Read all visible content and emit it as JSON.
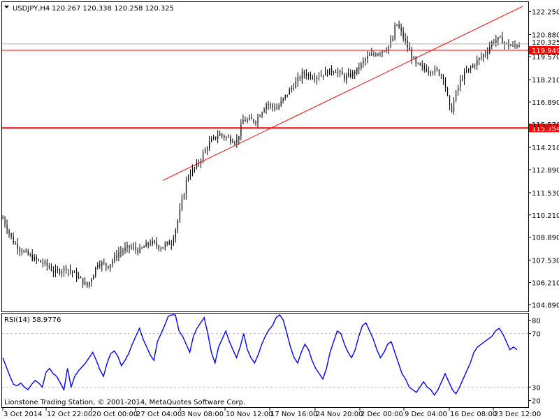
{
  "header": {
    "symbol": "USDJPY,H4",
    "ohlc": "120.267 120.338 120.258 120.325"
  },
  "rsi_label": "RSI(14) 58.9776",
  "copyright": "Lionstone Trading Station, © 2001-2014, MetaQuotes Software Corp.",
  "colors": {
    "candles": "#000000",
    "hline": "#ff0000",
    "trendline": "#ff0000",
    "rsi_line": "#0000ff",
    "rsi_levels": "#c0c0c0",
    "tag_bg": "#ff0000",
    "tag_text": "#ffffff"
  },
  "chart_data": [
    {
      "type": "candlestick",
      "symbol": "USDJPY",
      "timeframe": "H4",
      "y_ticks": [
        "122.250",
        "120.880",
        "119.570",
        "118.210",
        "116.890",
        "115.570",
        "114.210",
        "112.890",
        "111.530",
        "110.210",
        "108.890",
        "107.530",
        "106.210",
        "104.890"
      ],
      "ylim": [
        104.5,
        122.8
      ],
      "x_ticks": [
        "3 Oct 2014",
        "12 Oct 22:00",
        "20 Oct 00:00",
        "27 Oct 04:00",
        "3 Nov 08:00",
        "10 Nov 12:00",
        "17 Nov 16:00",
        "24 Nov 20:00",
        "2 Dec 00:00",
        "9 Dec 04:00",
        "16 Dec 08:00",
        "23 Dec 12:00"
      ],
      "current_price": "120.325",
      "horizontal_lines": [
        "119.949",
        "115.354"
      ],
      "trendline": {
        "from": [
          "Oct 29",
          112.3
        ],
        "to": [
          "Dec 26",
          122.5
        ]
      },
      "close_path": [
        [
          0,
          110.0
        ],
        [
          10,
          108.6
        ],
        [
          20,
          108.0
        ],
        [
          30,
          107.6
        ],
        [
          40,
          107.3
        ],
        [
          50,
          106.8
        ],
        [
          60,
          107.1
        ],
        [
          70,
          106.6
        ],
        [
          80,
          106.0
        ],
        [
          85,
          106.6
        ],
        [
          90,
          107.4
        ],
        [
          100,
          107.2
        ],
        [
          110,
          108.0
        ],
        [
          120,
          108.3
        ],
        [
          130,
          108.1
        ],
        [
          140,
          108.6
        ],
        [
          150,
          108.3
        ],
        [
          160,
          108.6
        ],
        [
          165,
          109.6
        ],
        [
          170,
          111.0
        ],
        [
          175,
          112.5
        ],
        [
          185,
          113.2
        ],
        [
          195,
          114.4
        ],
        [
          205,
          115.0
        ],
        [
          215,
          114.7
        ],
        [
          222,
          114.6
        ],
        [
          228,
          115.8
        ],
        [
          240,
          115.8
        ],
        [
          250,
          116.8
        ],
        [
          260,
          116.5
        ],
        [
          270,
          117.4
        ],
        [
          285,
          118.6
        ],
        [
          295,
          118.4
        ],
        [
          305,
          118.6
        ],
        [
          315,
          118.8
        ],
        [
          325,
          118.3
        ],
        [
          335,
          118.7
        ],
        [
          345,
          119.5
        ],
        [
          355,
          119.8
        ],
        [
          365,
          120.1
        ],
        [
          370,
          120.6
        ],
        [
          373,
          121.6
        ],
        [
          378,
          121.0
        ],
        [
          385,
          120.0
        ],
        [
          392,
          119.1
        ],
        [
          398,
          118.9
        ],
        [
          405,
          118.8
        ],
        [
          412,
          118.7
        ],
        [
          418,
          118.4
        ],
        [
          425,
          116.2
        ],
        [
          430,
          117.4
        ],
        [
          435,
          118.3
        ],
        [
          442,
          118.8
        ],
        [
          450,
          119.3
        ],
        [
          458,
          119.8
        ],
        [
          465,
          120.5
        ],
        [
          472,
          120.6
        ],
        [
          478,
          120.3
        ],
        [
          485,
          120.2
        ],
        [
          490,
          120.3
        ]
      ]
    },
    {
      "type": "line",
      "name": "RSI(14)",
      "y_ticks": [
        "80",
        "70",
        "30",
        "20"
      ],
      "ylim": [
        15,
        85
      ],
      "levels": [
        70,
        30
      ],
      "last_value": 58.9776,
      "values": [
        52,
        45,
        38,
        32,
        31,
        33,
        30,
        28,
        32,
        35,
        33,
        30,
        41,
        44,
        40,
        38,
        33,
        28,
        44,
        30,
        38,
        42,
        45,
        48,
        52,
        56,
        50,
        43,
        38,
        48,
        55,
        57,
        53,
        46,
        50,
        55,
        62,
        68,
        74,
        66,
        60,
        54,
        50,
        64,
        70,
        76,
        83,
        86,
        84,
        72,
        68,
        62,
        56,
        68,
        74,
        78,
        82,
        70,
        56,
        48,
        60,
        66,
        72,
        64,
        58,
        52,
        60,
        70,
        58,
        52,
        48,
        54,
        62,
        68,
        73,
        76,
        82,
        88,
        80,
        70,
        60,
        52,
        48,
        56,
        62,
        58,
        50,
        44,
        40,
        36,
        44,
        56,
        64,
        72,
        70,
        62,
        56,
        52,
        58,
        68,
        76,
        78,
        72,
        66,
        58,
        52,
        56,
        62,
        64,
        56,
        48,
        40,
        36,
        30,
        28,
        26,
        30,
        34,
        30,
        28,
        24,
        28,
        34,
        40,
        34,
        28,
        25,
        30,
        36,
        42,
        48,
        56,
        60,
        62,
        64,
        66,
        68,
        72,
        74,
        70,
        64,
        58,
        60,
        58
      ]
    }
  ]
}
